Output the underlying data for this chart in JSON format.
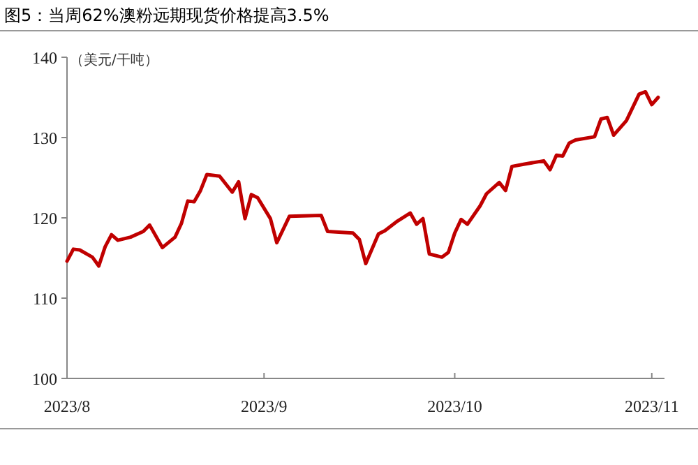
{
  "chart_data": {
    "type": "line",
    "title": "图5：当周62%澳粉远期现货价格提高3.5%",
    "ylabel": "（美元/干吨）",
    "x": [
      "2023-08-01",
      "2023-08-02",
      "2023-08-03",
      "2023-08-05",
      "2023-08-06",
      "2023-08-07",
      "2023-08-08",
      "2023-08-09",
      "2023-08-11",
      "2023-08-13",
      "2023-08-14",
      "2023-08-16",
      "2023-08-18",
      "2023-08-19",
      "2023-08-20",
      "2023-08-21",
      "2023-08-22",
      "2023-08-23",
      "2023-08-25",
      "2023-08-26",
      "2023-08-27",
      "2023-08-28",
      "2023-08-29",
      "2023-08-30",
      "2023-08-31",
      "2023-09-02",
      "2023-09-03",
      "2023-09-05",
      "2023-09-10",
      "2023-09-11",
      "2023-09-15",
      "2023-09-16",
      "2023-09-17",
      "2023-09-19",
      "2023-09-20",
      "2023-09-22",
      "2023-09-24",
      "2023-09-25",
      "2023-09-26",
      "2023-09-27",
      "2023-09-29",
      "2023-09-30",
      "2023-10-01",
      "2023-10-02",
      "2023-10-03",
      "2023-10-05",
      "2023-10-06",
      "2023-10-08",
      "2023-10-09",
      "2023-10-10",
      "2023-10-12",
      "2023-10-15",
      "2023-10-16",
      "2023-10-17",
      "2023-10-18",
      "2023-10-19",
      "2023-10-20",
      "2023-10-23",
      "2023-10-24",
      "2023-10-25",
      "2023-10-26",
      "2023-10-28",
      "2023-10-30",
      "2023-10-31",
      "2023-11-01",
      "2023-11-02"
    ],
    "series": [
      {
        "color": "#c00000",
        "values": [
          114.6,
          116.1,
          116.0,
          115.1,
          114.0,
          116.4,
          117.9,
          117.2,
          117.6,
          118.3,
          119.1,
          116.3,
          117.6,
          119.3,
          122.1,
          122.0,
          123.4,
          125.4,
          125.2,
          124.2,
          123.2,
          124.5,
          119.9,
          122.9,
          122.5,
          119.9,
          116.9,
          120.2,
          120.3,
          118.3,
          118.1,
          117.3,
          114.3,
          118.0,
          118.4,
          119.6,
          120.6,
          119.2,
          119.9,
          115.5,
          115.1,
          115.7,
          118.1,
          119.8,
          119.2,
          121.5,
          123.0,
          124.4,
          123.4,
          126.4,
          126.7,
          127.1,
          126.0,
          127.8,
          127.7,
          129.3,
          129.7,
          130.1,
          132.3,
          132.5,
          130.3,
          132.1,
          135.4,
          135.7,
          134.1,
          135.0
        ]
      }
    ],
    "xlim": [
      "2023-08-01",
      "2023-11-03"
    ],
    "xticks": [
      {
        "value": "2023-08-01",
        "label": "2023/8"
      },
      {
        "value": "2023-09-01",
        "label": "2023/9"
      },
      {
        "value": "2023-10-01",
        "label": "2023/10"
      },
      {
        "value": "2023-11-01",
        "label": "2023/11"
      }
    ],
    "ylim": [
      100,
      140
    ],
    "yticks": [
      100,
      110,
      120,
      130,
      140
    ],
    "grid": false,
    "marker": "none",
    "line_style": "solid"
  }
}
